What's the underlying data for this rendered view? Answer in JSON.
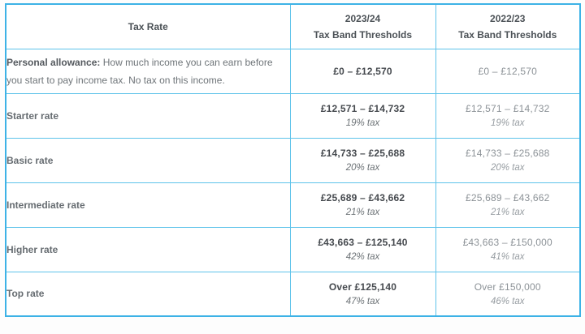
{
  "table": {
    "colors": {
      "border": "#5ec3ea",
      "outer_border": "#3db2e6"
    },
    "header": {
      "tax_rate": "Tax Rate",
      "y2024_line1": "2023/24",
      "y2024_line2": "Tax Band Thresholds",
      "y2023_line1": "2022/23",
      "y2023_line2": "Tax Band Thresholds"
    },
    "rows": [
      {
        "label_bold": "Personal allowance:",
        "label_rest": " How much income you can earn before you start to pay income tax. No tax on this income.",
        "y2024_range": "£0 – £12,570",
        "y2023_range": "£0 – £12,570"
      },
      {
        "label": "Starter rate",
        "y2024_range": "£12,571 – £14,732",
        "y2024_rate": "19% tax",
        "y2023_range": "£12,571 – £14,732",
        "y2023_rate": "19% tax"
      },
      {
        "label": "Basic rate",
        "y2024_range": "£14,733 – £25,688",
        "y2024_rate": "20% tax",
        "y2023_range": "£14,733 – £25,688",
        "y2023_rate": "20% tax"
      },
      {
        "label": "Intermediate rate",
        "y2024_range": "£25,689 – £43,662",
        "y2024_rate": "21% tax",
        "y2023_range": "£25,689 – £43,662",
        "y2023_rate": "21% tax"
      },
      {
        "label": "Higher rate",
        "y2024_range": "£43,663 – £125,140",
        "y2024_rate": "42% tax",
        "y2023_range": "£43,663 – £150,000",
        "y2023_rate": "41% tax"
      },
      {
        "label": "Top rate",
        "y2024_range": "Over £125,140",
        "y2024_rate": "47% tax",
        "y2023_range": "Over £150,000",
        "y2023_rate": "46% tax"
      }
    ]
  }
}
